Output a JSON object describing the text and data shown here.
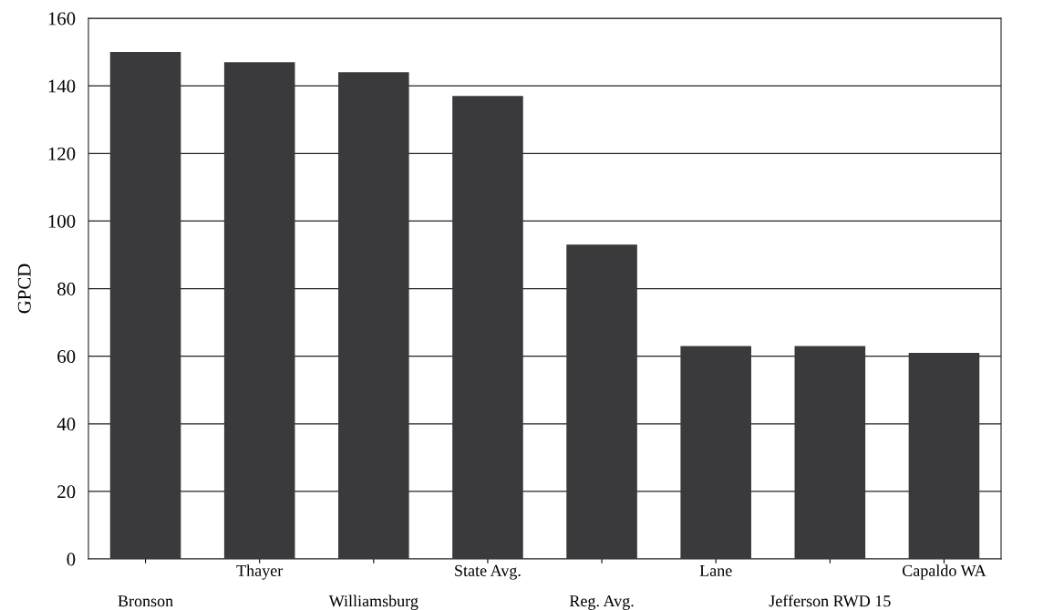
{
  "chart_data": {
    "type": "bar",
    "ylabel": "GPCD",
    "categories": [
      "Bronson",
      "Thayer",
      "Williamsburg",
      "State Avg.",
      "Reg. Avg.",
      "Lane",
      "Jefferson RWD 15",
      "Capaldo WA"
    ],
    "values": [
      150,
      147,
      144,
      137,
      93,
      63,
      63,
      61
    ],
    "color": "#3a3a3c",
    "ylim": [
      0,
      160
    ],
    "yticks": [
      0,
      20,
      40,
      60,
      80,
      100,
      120,
      140,
      160
    ],
    "grid": "y"
  }
}
